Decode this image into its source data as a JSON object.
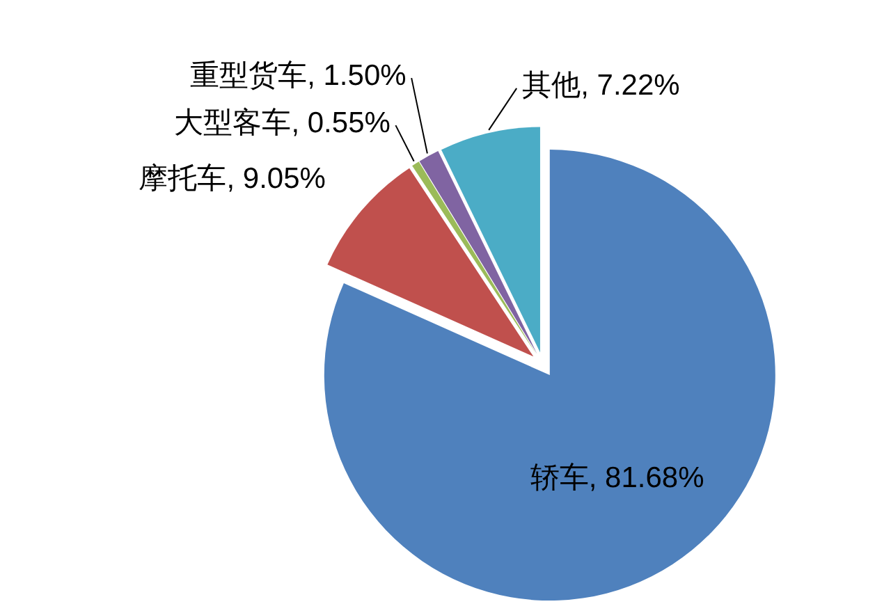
{
  "chart_data": {
    "type": "pie",
    "categories": [
      "轿车",
      "摩托车",
      "大型客车",
      "重型货车",
      "其他"
    ],
    "values": [
      81.68,
      9.05,
      0.55,
      1.5,
      7.22
    ],
    "colors": [
      "#4f81bd",
      "#c0504d",
      "#9bbb59",
      "#8064a2",
      "#4bacc6"
    ],
    "value_labels": [
      "81.68%",
      "9.05%",
      "0.55%",
      "1.50%",
      "7.22%"
    ]
  }
}
